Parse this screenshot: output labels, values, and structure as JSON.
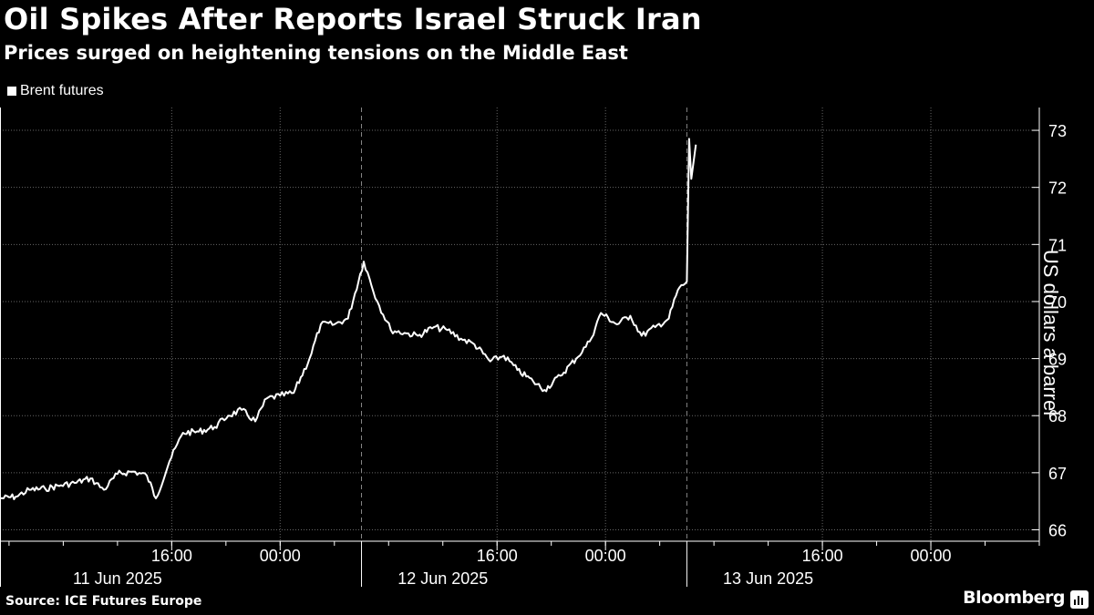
{
  "header": {
    "title": "Oil Spikes After Reports Israel Struck Iran",
    "subtitle": "Prices surged on heightening tensions on the Middle East"
  },
  "legend": {
    "label": "Brent futures",
    "color": "#ffffff"
  },
  "footer": {
    "source": "Source: ICE Futures Europe",
    "brand": "Bloomberg"
  },
  "chart_data": {
    "type": "line",
    "title": "Oil Spikes After Reports Israel Struck Iran",
    "subtitle": "Prices surged on heightening tensions on the Middle East",
    "ylabel": "US dollars a barrel",
    "ylim": [
      65.8,
      73.4
    ],
    "yticks": [
      66,
      67,
      68,
      69,
      70,
      71,
      72,
      73
    ],
    "xlim": [
      "2025-06-11 03:20",
      "2025-06-14 08:00"
    ],
    "xtick_times": [
      "16:00",
      "00:00",
      "16:00",
      "00:00",
      "16:00",
      "00:00"
    ],
    "xtick_positions": [
      "2025-06-11 16:00",
      "2025-06-12 00:00",
      "2025-06-12 16:00",
      "2025-06-13 00:00",
      "2025-06-13 16:00",
      "2025-06-14 00:00"
    ],
    "date_labels": [
      "11 Jun 2025",
      "12 Jun 2025",
      "13 Jun 2025"
    ],
    "date_positions": [
      "2025-06-11 12:00",
      "2025-06-12 12:00",
      "2025-06-13 12:00"
    ],
    "day_boundaries": [
      "2025-06-12 06:00",
      "2025-06-13 06:00"
    ],
    "series": [
      {
        "name": "Brent futures",
        "color": "#ffffff",
        "points": [
          [
            "2025-06-11 03:20",
            66.55
          ],
          [
            "2025-06-11 04:30",
            66.58
          ],
          [
            "2025-06-11 05:30",
            66.7
          ],
          [
            "2025-06-11 06:40",
            66.72
          ],
          [
            "2025-06-11 07:50",
            66.78
          ],
          [
            "2025-06-11 08:50",
            66.82
          ],
          [
            "2025-06-11 10:00",
            66.9
          ],
          [
            "2025-06-11 11:00",
            66.7
          ],
          [
            "2025-06-11 12:00",
            66.98
          ],
          [
            "2025-06-11 13:10",
            67.02
          ],
          [
            "2025-06-11 14:10",
            66.95
          ],
          [
            "2025-06-11 14:50",
            66.55
          ],
          [
            "2025-06-11 15:50",
            67.2
          ],
          [
            "2025-06-11 16:50",
            67.7
          ],
          [
            "2025-06-11 18:00",
            67.72
          ],
          [
            "2025-06-11 19:10",
            67.8
          ],
          [
            "2025-06-11 20:10",
            68.0
          ],
          [
            "2025-06-11 21:10",
            68.1
          ],
          [
            "2025-06-11 22:10",
            67.9
          ],
          [
            "2025-06-11 23:00",
            68.3
          ],
          [
            "2025-06-12 00:00",
            68.35
          ],
          [
            "2025-06-12 01:00",
            68.4
          ],
          [
            "2025-06-12 02:10",
            69.0
          ],
          [
            "2025-06-12 03:00",
            69.6
          ],
          [
            "2025-06-12 04:00",
            69.6
          ],
          [
            "2025-06-12 05:00",
            69.7
          ],
          [
            "2025-06-12 06:10",
            70.7
          ],
          [
            "2025-06-12 07:10",
            70.0
          ],
          [
            "2025-06-12 08:10",
            69.5
          ],
          [
            "2025-06-12 09:10",
            69.45
          ],
          [
            "2025-06-12 10:10",
            69.4
          ],
          [
            "2025-06-12 11:20",
            69.55
          ],
          [
            "2025-06-12 12:20",
            69.5
          ],
          [
            "2025-06-12 13:20",
            69.35
          ],
          [
            "2025-06-12 14:20",
            69.25
          ],
          [
            "2025-06-12 15:30",
            68.95
          ],
          [
            "2025-06-12 16:30",
            69.05
          ],
          [
            "2025-06-12 17:30",
            68.8
          ],
          [
            "2025-06-12 18:40",
            68.6
          ],
          [
            "2025-06-12 19:30",
            68.45
          ],
          [
            "2025-06-12 20:40",
            68.7
          ],
          [
            "2025-06-12 21:50",
            69.0
          ],
          [
            "2025-06-12 22:50",
            69.3
          ],
          [
            "2025-06-12 23:40",
            69.8
          ],
          [
            "2025-06-13 00:50",
            69.6
          ],
          [
            "2025-06-13 01:50",
            69.75
          ],
          [
            "2025-06-13 02:40",
            69.4
          ],
          [
            "2025-06-13 03:40",
            69.55
          ],
          [
            "2025-06-13 04:40",
            69.7
          ],
          [
            "2025-06-13 05:20",
            70.2
          ],
          [
            "2025-06-13 06:00",
            70.35
          ],
          [
            "2025-06-13 06:10",
            72.85
          ],
          [
            "2025-06-13 06:20",
            72.15
          ],
          [
            "2025-06-13 06:40",
            72.75
          ]
        ]
      }
    ],
    "grid": true,
    "legend_position": "top-left"
  }
}
